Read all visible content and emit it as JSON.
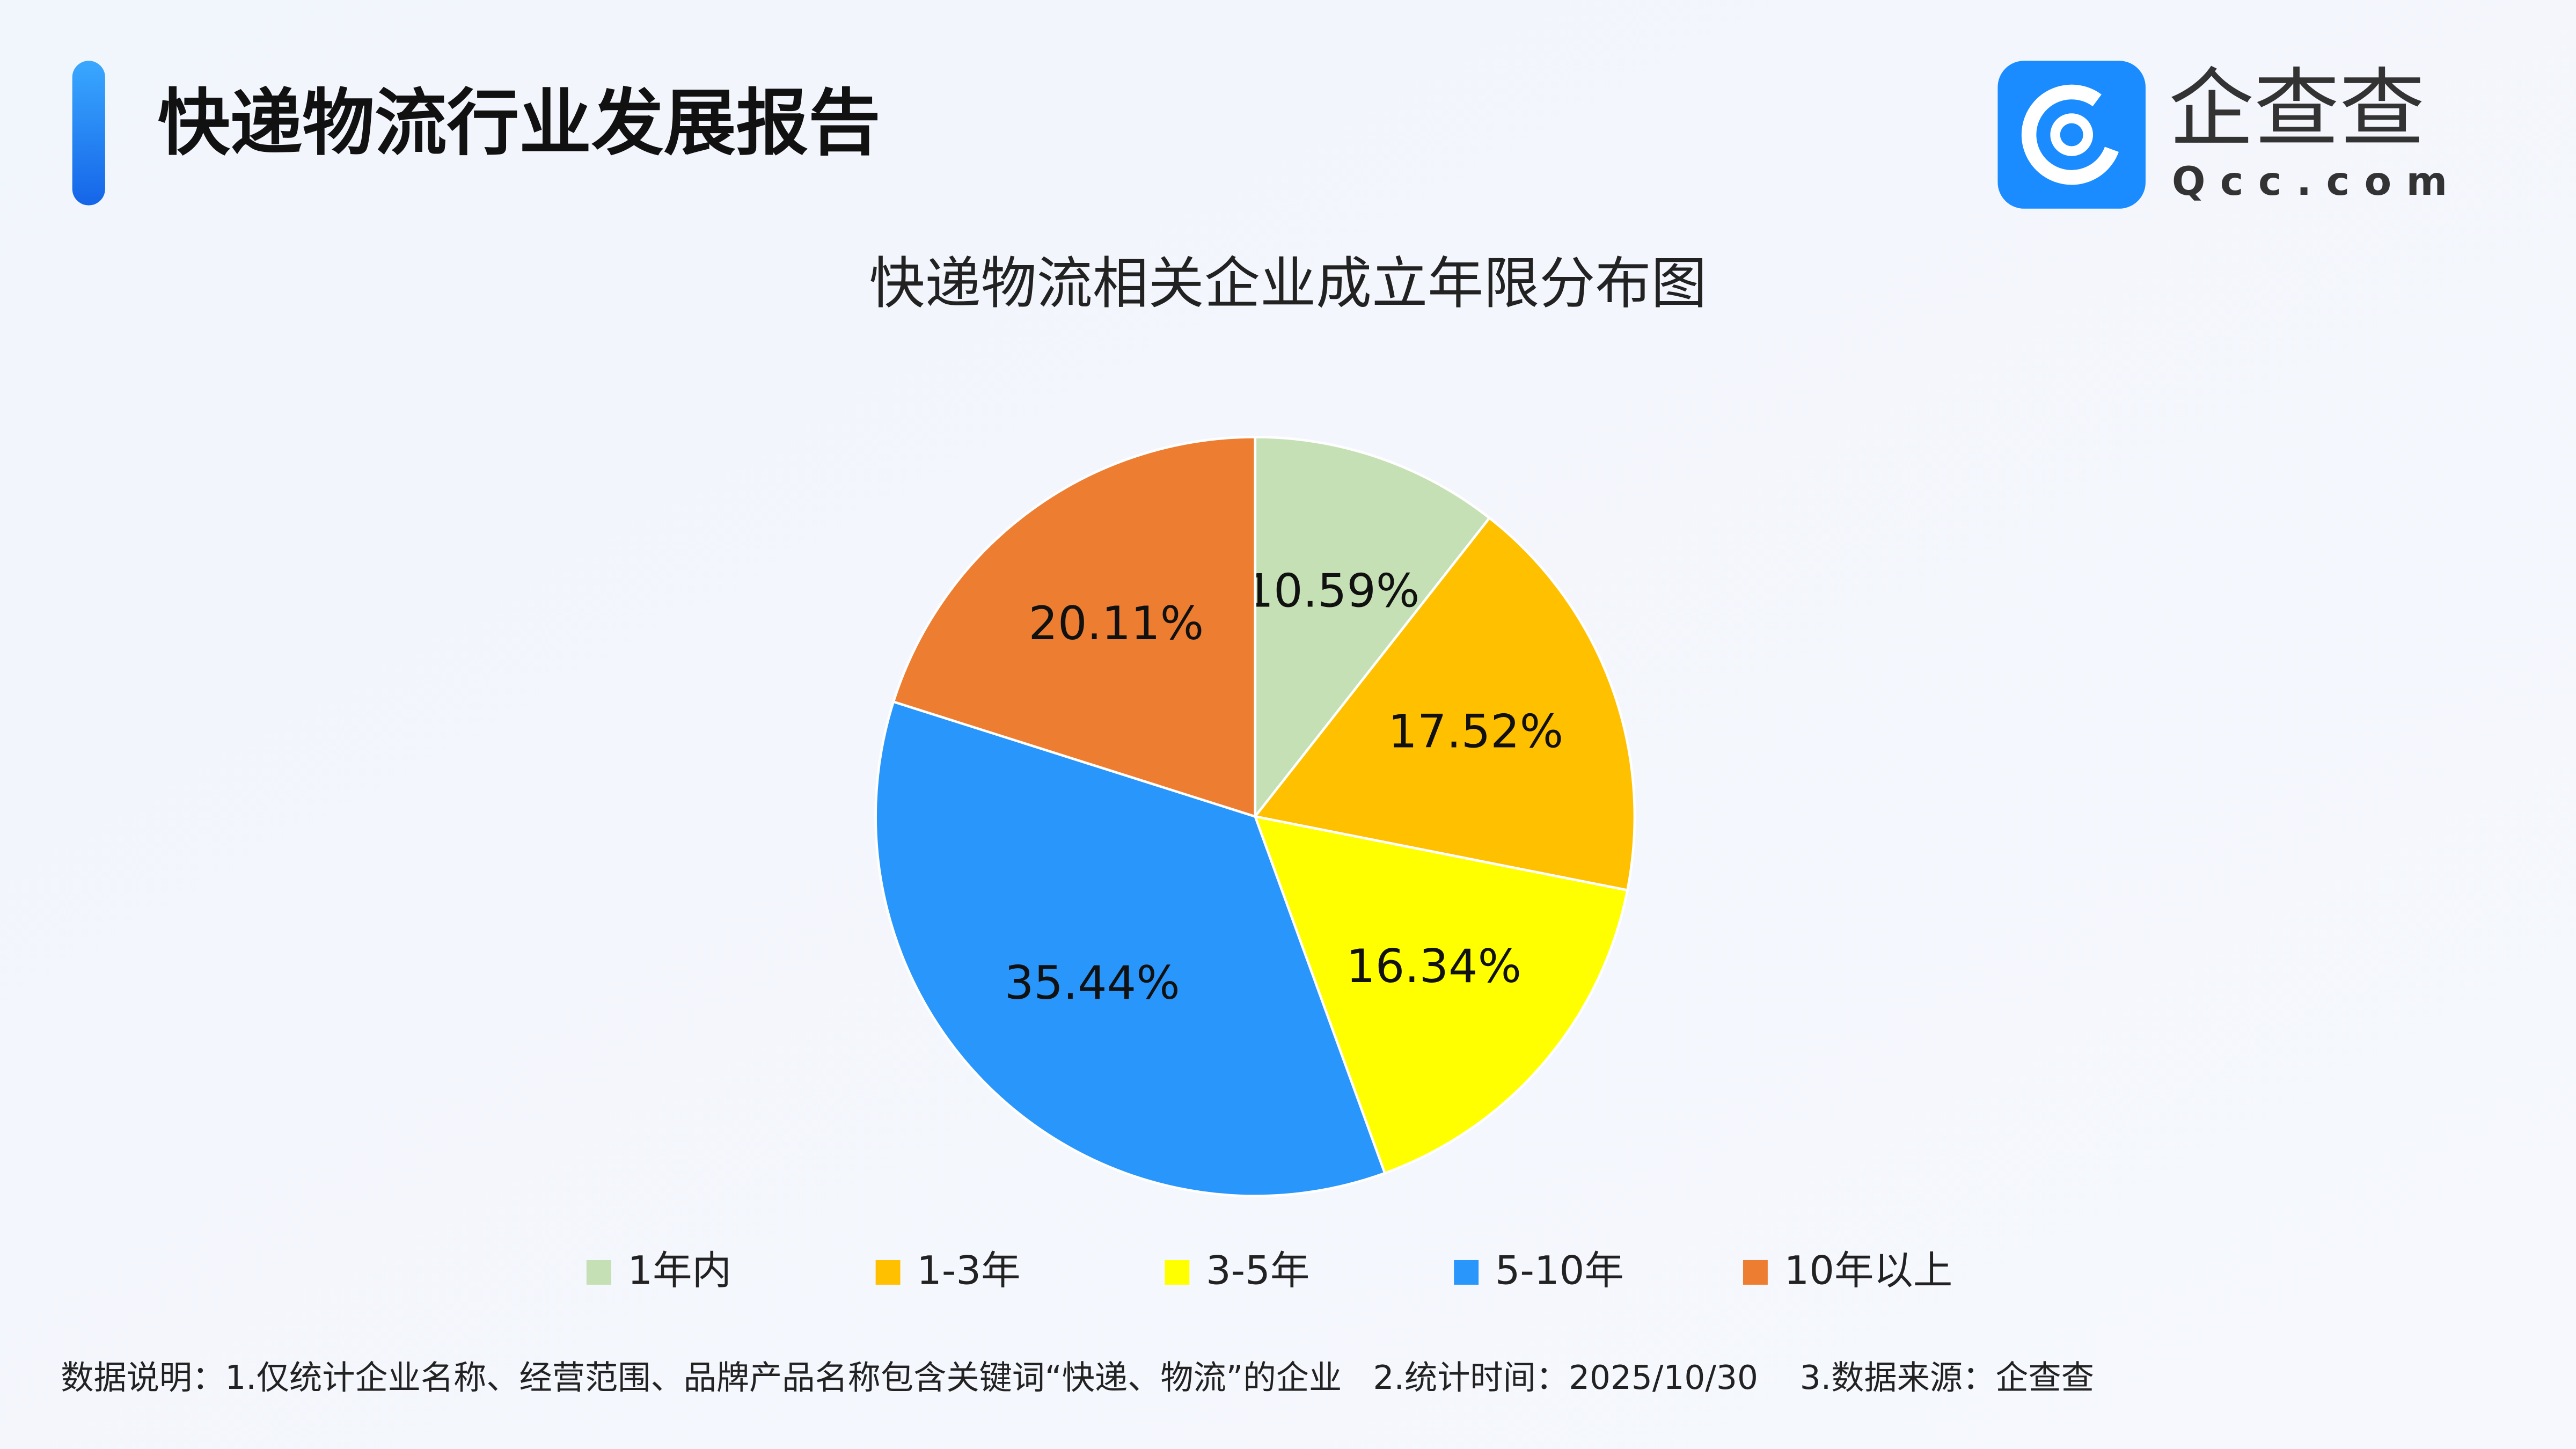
{
  "header": {
    "title": "快递物流行业发展报告"
  },
  "logo": {
    "name": "企查查",
    "domain": "Qcc.com"
  },
  "chart_data": {
    "type": "pie",
    "title": "快递物流相关企业成立年限分布图",
    "categories": [
      "1年内",
      "1-3年",
      "3-5年",
      "5-10年",
      "10年以上"
    ],
    "values": [
      10.59,
      17.52,
      16.34,
      35.44,
      20.11
    ],
    "value_labels": [
      "10.59%",
      "17.52%",
      "16.34%",
      "35.44%",
      "20.11%"
    ],
    "colors": [
      "#c5e0b4",
      "#ffc000",
      "#ffff00",
      "#2996fb",
      "#ed7d31"
    ],
    "legend": "bottom"
  },
  "footnote": "数据说明：1.仅统计企业名称、经营范围、品牌产品名称包含关键词“快递、物流”的企业   2.统计时间：2025/10/30    3.数据来源：企查查"
}
